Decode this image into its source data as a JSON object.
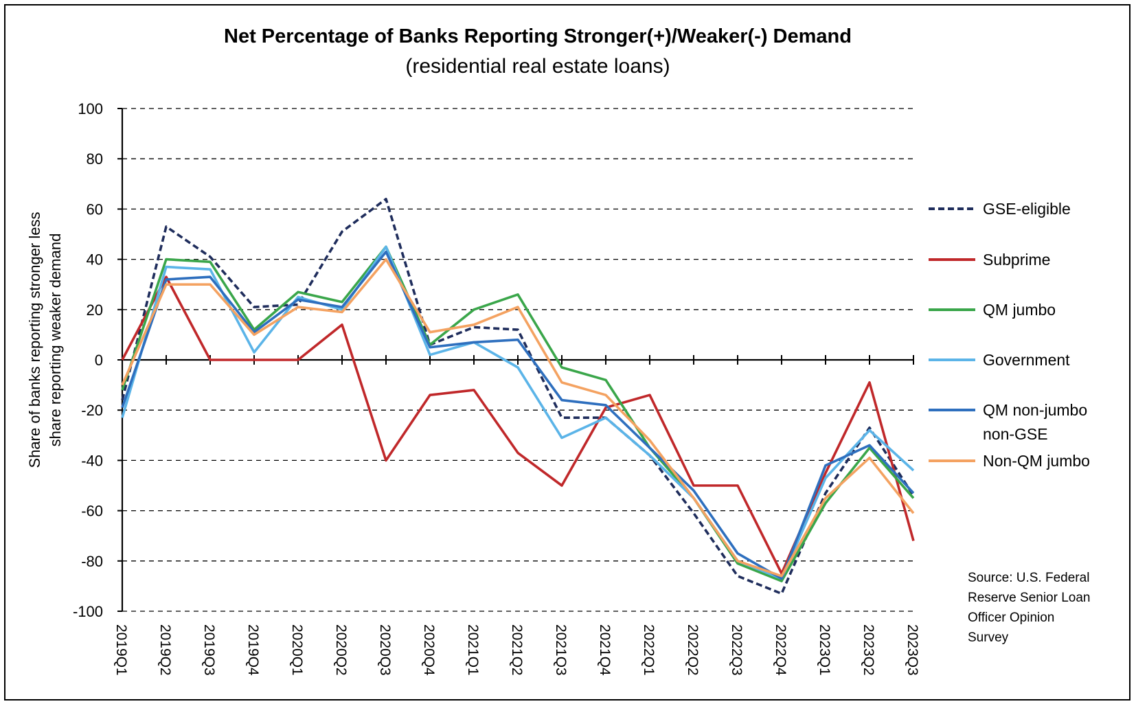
{
  "chart_data": {
    "type": "line",
    "title": "Net Percentage of Banks Reporting Stronger(+)/Weaker(-) Demand",
    "subtitle": "(residential real estate loans)",
    "ylabel_lines": [
      "Share of banks reporting stronger less",
      "share reporting weaker demand"
    ],
    "xlabel": "",
    "ylim": [
      -100,
      100
    ],
    "yticks": [
      100,
      80,
      60,
      40,
      20,
      0,
      -20,
      -40,
      -60,
      -80,
      -100
    ],
    "grid": "horizontal dashed",
    "legend_position": "right",
    "categories": [
      "2019Q1",
      "2019Q2",
      "2019Q3",
      "2019Q4",
      "2020Q1",
      "2020Q2",
      "2020Q3",
      "2020Q4",
      "2021Q1",
      "2021Q2",
      "2021Q3",
      "2021Q4",
      "2022Q1",
      "2022Q2",
      "2022Q3",
      "2022Q4",
      "2023Q1",
      "2023Q2",
      "2023Q3"
    ],
    "series": [
      {
        "name": "GSE-eligible",
        "legend_lines": [
          "GSE-eligible"
        ],
        "color": "#1f2d5c",
        "dashed": true,
        "values": [
          -16,
          53,
          41,
          21,
          22,
          51,
          64,
          6,
          13,
          12,
          -23,
          -23,
          -38,
          -61,
          -86,
          -93,
          -53,
          -27,
          -54
        ]
      },
      {
        "name": "Subprime",
        "legend_lines": [
          "Subprime"
        ],
        "color": "#c0282a",
        "dashed": false,
        "values": [
          0,
          33,
          0,
          0,
          0,
          14,
          -40,
          -14,
          -12,
          -37,
          -50,
          -19,
          -14,
          -50,
          -50,
          -85,
          -45,
          -9,
          -72
        ]
      },
      {
        "name": "QM jumbo",
        "legend_lines": [
          "QM jumbo"
        ],
        "color": "#3aa64a",
        "dashed": false,
        "values": [
          -12,
          40,
          39,
          12,
          27,
          23,
          45,
          6,
          20,
          26,
          -3,
          -8,
          -35,
          -55,
          -81,
          -88,
          -57,
          -35,
          -55
        ]
      },
      {
        "name": "Government",
        "legend_lines": [
          "Government"
        ],
        "color": "#5bb4e8",
        "dashed": false,
        "values": [
          -23,
          37,
          36,
          3,
          25,
          20,
          45,
          2,
          7,
          -3,
          -31,
          -23,
          -38,
          -55,
          -80,
          -87,
          -47,
          -28,
          -44
        ]
      },
      {
        "name": "QM non-jumbo non-GSE",
        "legend_lines": [
          "QM non-jumbo",
          "non-GSE"
        ],
        "color": "#2e6fbe",
        "dashed": false,
        "values": [
          -19,
          32,
          33,
          11,
          24,
          21,
          43,
          5,
          7,
          8,
          -16,
          -18,
          -35,
          -52,
          -77,
          -87,
          -42,
          -34,
          -53
        ]
      },
      {
        "name": "Non-QM jumbo",
        "legend_lines": [
          "Non-QM jumbo"
        ],
        "color": "#f4a261",
        "dashed": false,
        "values": [
          -10,
          30,
          30,
          10,
          21,
          19,
          40,
          11,
          14,
          21,
          -9,
          -14,
          -32,
          -55,
          -80,
          -86,
          -55,
          -39,
          -61
        ]
      }
    ],
    "source_lines": [
      "Source: U.S. Federal",
      "Reserve Senior Loan",
      "Officer Opinion",
      "Survey"
    ]
  }
}
